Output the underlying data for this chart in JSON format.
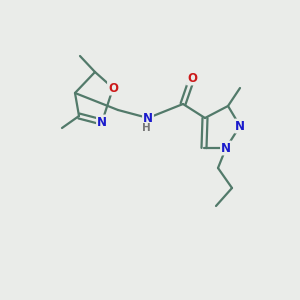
{
  "background_color": "#eaece9",
  "bond_color": "#527a6a",
  "atom_colors": {
    "N": "#1a1acc",
    "O": "#cc1a1a",
    "C": "#527a6a",
    "H": "#888888"
  },
  "figsize": [
    3.0,
    3.0
  ],
  "dpi": 100
}
